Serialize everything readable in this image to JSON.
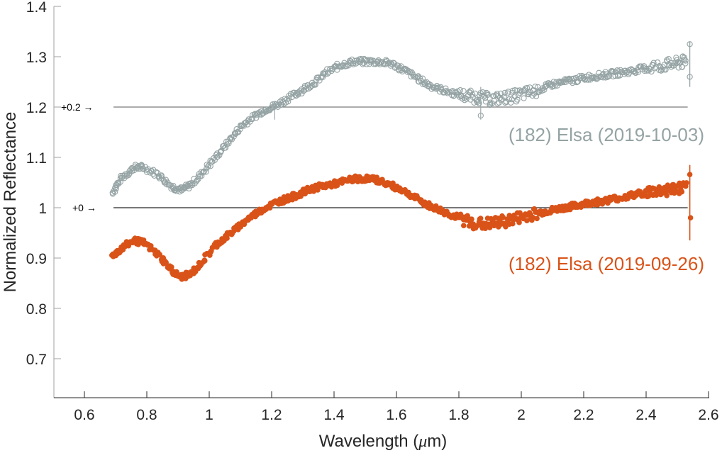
{
  "chart_data": {
    "type": "scatter",
    "title": "",
    "xlabel": "Wavelength (μm)",
    "ylabel": "Normalized Reflectance",
    "xlim": [
      0.5,
      2.6
    ],
    "ylim": [
      0.62,
      1.4
    ],
    "grid": false,
    "legend_position": "inline labels",
    "x_ticks": [
      0.6,
      0.8,
      1,
      1.2,
      1.4,
      1.6,
      1.8,
      2,
      2.2,
      2.4,
      2.6
    ],
    "x_tick_labels": [
      "0.6",
      "0.8",
      "1",
      "1.2",
      "1.4",
      "1.6",
      "1.8",
      "2",
      "2.2",
      "2.4",
      "2.6"
    ],
    "y_ticks": [
      0.7,
      0.8,
      0.9,
      1,
      1.1,
      1.2,
      1.3,
      1.4
    ],
    "y_tick_labels": [
      "0.7",
      "0.8",
      "0.9",
      "1",
      "1.1",
      "1.2",
      "1.3",
      "1.4"
    ],
    "reference_lines": [
      {
        "label": "+0.2 →",
        "y": 1.2,
        "x_range": [
          0.69,
          2.54
        ]
      },
      {
        "label": "+0 →",
        "y": 1.0,
        "x_range": [
          0.69,
          2.54
        ]
      }
    ],
    "series": [
      {
        "name": "(182) Elsa (2019-10-03)",
        "offset": 0.2,
        "color": "#95A3A4",
        "marker": "open-circle",
        "x": [
          0.69,
          0.72,
          0.76,
          0.79,
          0.84,
          0.88,
          0.91,
          0.94,
          0.98,
          1.02,
          1.06,
          1.1,
          1.14,
          1.18,
          1.22,
          1.26,
          1.3,
          1.34,
          1.38,
          1.42,
          1.46,
          1.5,
          1.54,
          1.58,
          1.62,
          1.66,
          1.7,
          1.74,
          1.78,
          1.82,
          1.86,
          1.9,
          1.94,
          1.98,
          2.02,
          2.06,
          2.1,
          2.14,
          2.18,
          2.22,
          2.26,
          2.3,
          2.34,
          2.38,
          2.42,
          2.46,
          2.5,
          2.53
        ],
        "values": [
          1.03,
          1.06,
          1.08,
          1.08,
          1.065,
          1.042,
          1.035,
          1.045,
          1.07,
          1.1,
          1.13,
          1.16,
          1.18,
          1.195,
          1.205,
          1.22,
          1.235,
          1.25,
          1.27,
          1.283,
          1.29,
          1.29,
          1.29,
          1.287,
          1.275,
          1.26,
          1.245,
          1.235,
          1.228,
          1.222,
          1.22,
          1.215,
          1.218,
          1.222,
          1.228,
          1.235,
          1.245,
          1.25,
          1.255,
          1.26,
          1.263,
          1.267,
          1.27,
          1.275,
          1.28,
          1.283,
          1.287,
          1.29
        ]
      },
      {
        "name": "(182) Elsa (2019-09-26)",
        "offset": 0.0,
        "color": "#D95319",
        "marker": "filled-circle",
        "x": [
          0.69,
          0.72,
          0.76,
          0.79,
          0.84,
          0.88,
          0.91,
          0.94,
          0.98,
          1.02,
          1.06,
          1.1,
          1.14,
          1.18,
          1.22,
          1.26,
          1.3,
          1.34,
          1.38,
          1.42,
          1.46,
          1.5,
          1.54,
          1.58,
          1.62,
          1.66,
          1.7,
          1.74,
          1.78,
          1.82,
          1.86,
          1.9,
          1.94,
          1.98,
          2.02,
          2.06,
          2.1,
          2.14,
          2.18,
          2.22,
          2.26,
          2.3,
          2.34,
          2.38,
          2.42,
          2.46,
          2.5,
          2.53
        ],
        "values": [
          0.905,
          0.92,
          0.935,
          0.93,
          0.905,
          0.875,
          0.862,
          0.868,
          0.895,
          0.925,
          0.945,
          0.965,
          0.985,
          1.0,
          1.012,
          1.02,
          1.03,
          1.04,
          1.045,
          1.05,
          1.057,
          1.058,
          1.055,
          1.045,
          1.035,
          1.02,
          1.005,
          0.995,
          0.985,
          0.975,
          0.968,
          0.968,
          0.972,
          0.978,
          0.985,
          0.99,
          0.995,
          1.0,
          1.005,
          1.01,
          1.013,
          1.018,
          1.022,
          1.028,
          1.032,
          1.035,
          1.038,
          1.04
        ]
      }
    ],
    "annotations": [
      {
        "text": "(182) Elsa (2019-10-03)",
        "color": "#95A3A4"
      },
      {
        "text": "(182) Elsa (2019-09-26)",
        "color": "#D95319"
      }
    ]
  },
  "labels": {
    "xlabel_prefix": "Wavelength (",
    "xlabel_mu": "μ",
    "xlabel_suffix": "m)",
    "ylabel": "Normalized Reflectance",
    "offset_top": "+0.2 →",
    "offset_bottom": "+0 →",
    "series_top": "(182) Elsa (2019-10-03)",
    "series_bottom": "(182) Elsa (2019-09-26)"
  }
}
